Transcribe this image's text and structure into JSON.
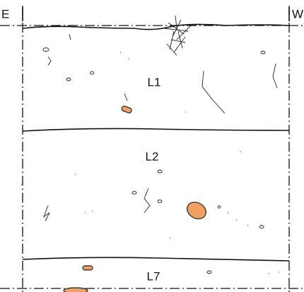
{
  "header": {
    "left": "E",
    "right": "W"
  },
  "layers": [
    {
      "label": "L1"
    },
    {
      "label": "L2"
    },
    {
      "label": "L7"
    }
  ]
}
